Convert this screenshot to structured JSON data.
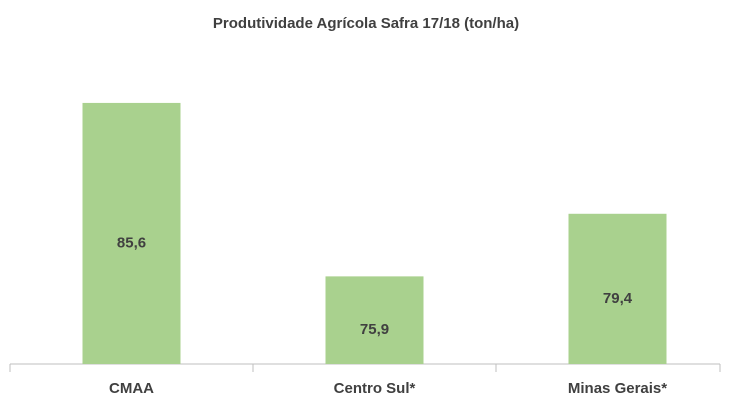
{
  "chart_data": {
    "type": "bar",
    "title": "Produtividade Agrícola Safra 17/18 (ton/ha)",
    "categories": [
      "CMAA",
      "Centro Sul*",
      "Minas Gerais*"
    ],
    "values": [
      85.6,
      75.9,
      79.4
    ],
    "value_labels": [
      "85,6",
      "75,9",
      "79,4"
    ],
    "color": "#a9d18e",
    "ylim": [
      71,
      88
    ]
  }
}
